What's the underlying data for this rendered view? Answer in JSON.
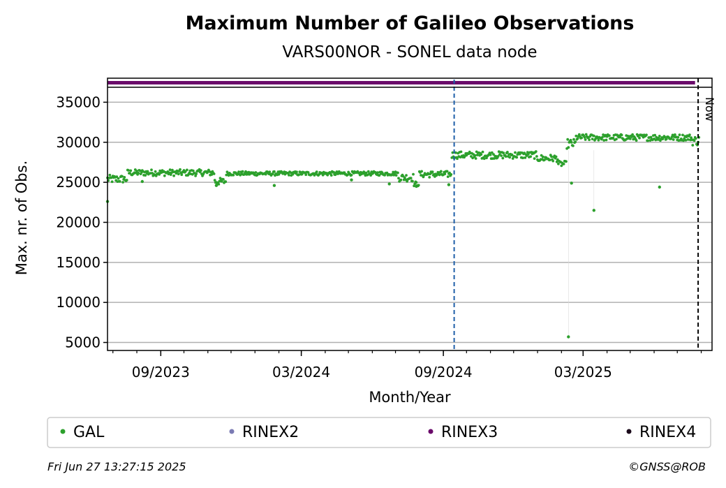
{
  "chart_data": {
    "type": "scatter",
    "title": "Maximum Number of Galileo Observations",
    "subtitle": "VARS00NOR - SONEL data node",
    "xlabel": "Month/Year",
    "ylabel": "Max. nr. of Obs.",
    "x_range": [
      "2023-06-24",
      "2025-08-15"
    ],
    "ylim": [
      4000,
      38000
    ],
    "y_ticks": [
      5000,
      10000,
      15000,
      20000,
      25000,
      30000,
      35000
    ],
    "x_ticks": [
      {
        "date": "2023-09-01",
        "label": "09/2023"
      },
      {
        "date": "2024-03-01",
        "label": "03/2024"
      },
      {
        "date": "2024-09-01",
        "label": "09/2024"
      },
      {
        "date": "2025-03-01",
        "label": "03/2025"
      }
    ],
    "grid": "horizontal",
    "now_date": "2025-07-28",
    "now_label": "Now",
    "marker_date": "2024-09-15",
    "marker_color": "#1f5fa8",
    "series": [
      {
        "name": "GAL",
        "color": "#2ca02c"
      },
      {
        "name": "RINEX2",
        "color": "#7b7bb3"
      },
      {
        "name": "RINEX3",
        "color": "#6a0a6a"
      },
      {
        "name": "RINEX4",
        "color": "#1a0a1a"
      }
    ],
    "segments": [
      {
        "start": "2023-06-24",
        "end": "2023-07-20",
        "level": 25400,
        "spread": 500
      },
      {
        "start": "2023-07-20",
        "end": "2023-09-20",
        "level": 26200,
        "spread": 400
      },
      {
        "start": "2023-09-20",
        "end": "2023-11-10",
        "level": 26200,
        "spread": 400
      },
      {
        "start": "2023-11-10",
        "end": "2023-11-25",
        "level": 25100,
        "spread": 450
      },
      {
        "start": "2023-11-25",
        "end": "2024-07-05",
        "level": 26100,
        "spread": 250
      },
      {
        "start": "2024-07-05",
        "end": "2024-07-25",
        "level": 25600,
        "spread": 500
      },
      {
        "start": "2024-07-25",
        "end": "2024-08-01",
        "level": 24800,
        "spread": 300
      },
      {
        "start": "2024-08-01",
        "end": "2024-09-12",
        "level": 26000,
        "spread": 400
      },
      {
        "start": "2024-09-12",
        "end": "2024-12-31",
        "level": 28400,
        "spread": 450
      },
      {
        "start": "2024-12-31",
        "end": "2025-01-28",
        "level": 28000,
        "spread": 450
      },
      {
        "start": "2025-01-28",
        "end": "2025-02-08",
        "level": 27300,
        "spread": 350
      },
      {
        "start": "2025-02-08",
        "end": "2025-02-20",
        "level": 29800,
        "spread": 600
      },
      {
        "start": "2025-02-20",
        "end": "2025-07-20",
        "level": 30600,
        "spread": 400
      },
      {
        "start": "2025-07-20",
        "end": "2025-07-30",
        "level": 30200,
        "spread": 600
      }
    ],
    "outliers": [
      {
        "x": "2023-06-24",
        "y": 22600
      },
      {
        "x": "2023-08-08",
        "y": 25100
      },
      {
        "x": "2023-11-12",
        "y": 24600
      },
      {
        "x": "2024-01-26",
        "y": 24600
      },
      {
        "x": "2024-05-05",
        "y": 25300
      },
      {
        "x": "2024-06-23",
        "y": 24800
      },
      {
        "x": "2024-07-28",
        "y": 24500
      },
      {
        "x": "2024-09-08",
        "y": 24700
      },
      {
        "x": "2025-02-10",
        "y": 5700
      },
      {
        "x": "2025-02-14",
        "y": 24900
      },
      {
        "x": "2025-03-15",
        "y": 21500
      },
      {
        "x": "2025-06-08",
        "y": 24400
      }
    ],
    "rinex3_band": {
      "start": "2023-06-24",
      "end": "2025-07-24"
    },
    "legend": {
      "position": "bottom",
      "labels": [
        "GAL",
        "RINEX2",
        "RINEX3",
        "RINEX4"
      ]
    }
  },
  "footer": {
    "timestamp": "Fri Jun 27 13:27:15 2025",
    "credit": "©GNSS@ROB"
  }
}
